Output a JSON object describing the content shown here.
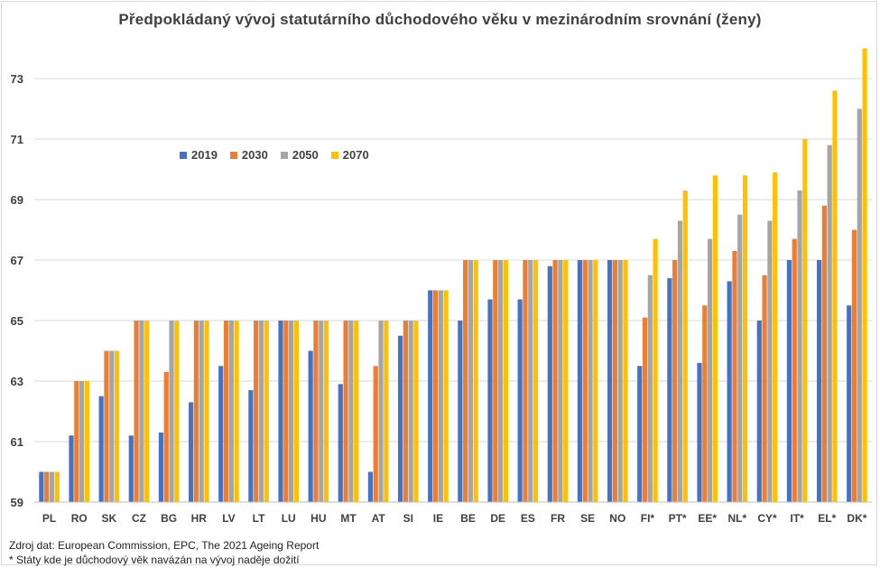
{
  "chart_data": {
    "type": "bar",
    "title": "Předpokládaný  vývoj statutárního  důchodového  věku v mezinárodním  srovnání  (ženy)",
    "xlabel": "",
    "ylabel": "",
    "ylim": [
      59,
      74
    ],
    "yticks": [
      59,
      61,
      63,
      65,
      67,
      69,
      71,
      73
    ],
    "grid": true,
    "legend_position": "top-left",
    "categories": [
      "PL",
      "RO",
      "SK",
      "CZ",
      "BG",
      "HR",
      "LV",
      "LT",
      "LU",
      "HU",
      "MT",
      "AT",
      "SI",
      "IE",
      "BE",
      "DE",
      "ES",
      "FR",
      "SE",
      "NO",
      "FI*",
      "PT*",
      "EE*",
      "NL*",
      "CY*",
      "IT*",
      "EL*",
      "DK*"
    ],
    "series": [
      {
        "name": "2019",
        "color": "#4472c4",
        "values": [
          60,
          61.2,
          62.5,
          61.2,
          61.3,
          62.3,
          63.5,
          62.7,
          65,
          64,
          62.9,
          60,
          64.5,
          66,
          65,
          65.7,
          65.7,
          66.8,
          67,
          67,
          63.5,
          66.4,
          63.6,
          66.3,
          65,
          67,
          67,
          65.5
        ]
      },
      {
        "name": "2030",
        "color": "#ed7d31",
        "values": [
          60,
          63,
          64,
          65,
          63.3,
          65,
          65,
          65,
          65,
          65,
          65,
          63.5,
          65,
          66,
          67,
          67,
          67,
          67,
          67,
          67,
          65.1,
          67,
          65.5,
          67.3,
          66.5,
          67.7,
          68.8,
          68
        ]
      },
      {
        "name": "2050",
        "color": "#a5a5a5",
        "values": [
          60,
          63,
          64,
          65,
          65,
          65,
          65,
          65,
          65,
          65,
          65,
          65,
          65,
          66,
          67,
          67,
          67,
          67,
          67,
          67,
          66.5,
          68.3,
          67.7,
          68.5,
          68.3,
          69.3,
          70.8,
          72
        ]
      },
      {
        "name": "2070",
        "color": "#ffc000",
        "values": [
          60,
          63,
          64,
          65,
          65,
          65,
          65,
          65,
          65,
          65,
          65,
          65,
          65,
          66,
          67,
          67,
          67,
          67,
          67,
          67,
          67.7,
          69.3,
          69.8,
          69.8,
          69.9,
          71,
          72.6,
          74
        ]
      }
    ]
  },
  "source": {
    "line1": "Zdroj dat: European Commission, EPC, The 2021 Ageing Report",
    "line2": "* Státy kde je důchodový věk navázán na vývoj naděje dožití"
  }
}
